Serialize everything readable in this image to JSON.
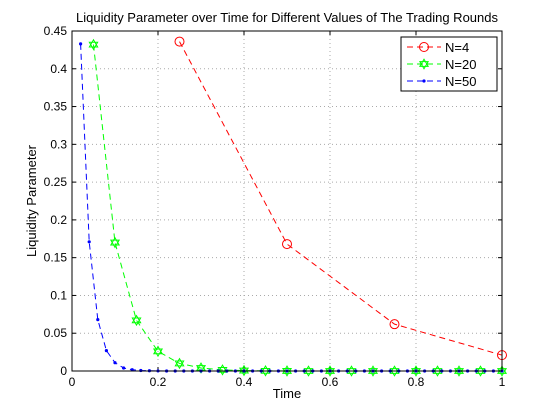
{
  "chart_data": {
    "type": "line",
    "title": "Liquidity Parameter over Time for Different Values of The Trading Rounds",
    "xlabel": "Time",
    "ylabel": "Liquidity Parameter",
    "xlim": [
      0,
      1
    ],
    "ylim": [
      0,
      0.45
    ],
    "xticks": [
      "0",
      "0.2",
      "0.4",
      "0.6",
      "0.8",
      "1"
    ],
    "yticks": [
      "0",
      "0.05",
      "0.1",
      "0.15",
      "0.2",
      "0.25",
      "0.3",
      "0.35",
      "0.4",
      "0.45"
    ],
    "grid": true,
    "legend_position": "top-right",
    "series": [
      {
        "name": "N=4",
        "color": "#ff0000",
        "marker": "circle",
        "line_style": "dashed",
        "x": [
          0.25,
          0.5,
          0.75,
          1.0
        ],
        "y": [
          0.436,
          0.168,
          0.062,
          0.021
        ]
      },
      {
        "name": "N=20",
        "color": "#00ff00",
        "marker": "hexagram",
        "line_style": "dashed",
        "x": [
          0.05,
          0.1,
          0.15,
          0.2,
          0.25,
          0.3,
          0.35,
          0.4,
          0.45,
          0.5,
          0.55,
          0.6,
          0.65,
          0.7,
          0.75,
          0.8,
          0.85,
          0.9,
          0.95,
          1.0
        ],
        "y": [
          0.432,
          0.17,
          0.067,
          0.026,
          0.01,
          0.004,
          0.0015,
          0.0006,
          0.0002,
          0.0001,
          0,
          0,
          0,
          0,
          0,
          0,
          0,
          0,
          0,
          0
        ]
      },
      {
        "name": "N=50",
        "color": "#0000ff",
        "marker": "point",
        "line_style": "dashed",
        "x": [
          0.02,
          0.04,
          0.06,
          0.08,
          0.1,
          0.12,
          0.14,
          0.16,
          0.18,
          0.2,
          0.22,
          0.24,
          0.26,
          0.28,
          0.3,
          0.32,
          0.34,
          0.36,
          0.38,
          0.4,
          0.42,
          0.44,
          0.46,
          0.48,
          0.5,
          0.52,
          0.54,
          0.56,
          0.58,
          0.6,
          0.62,
          0.64,
          0.66,
          0.68,
          0.7,
          0.72,
          0.74,
          0.76,
          0.78,
          0.8,
          0.82,
          0.84,
          0.86,
          0.88,
          0.9,
          0.92,
          0.94,
          0.96,
          0.98,
          1.0
        ],
        "y": [
          0.433,
          0.171,
          0.068,
          0.027,
          0.011,
          0.004,
          0.0017,
          0.0007,
          0.0003,
          0.0001,
          0,
          0,
          0,
          0,
          0,
          0,
          0,
          0,
          0,
          0,
          0,
          0,
          0,
          0,
          0,
          0,
          0,
          0,
          0,
          0,
          0,
          0,
          0,
          0,
          0,
          0,
          0,
          0,
          0,
          0,
          0,
          0,
          0,
          0,
          0,
          0,
          0,
          0,
          0,
          0
        ]
      }
    ]
  }
}
